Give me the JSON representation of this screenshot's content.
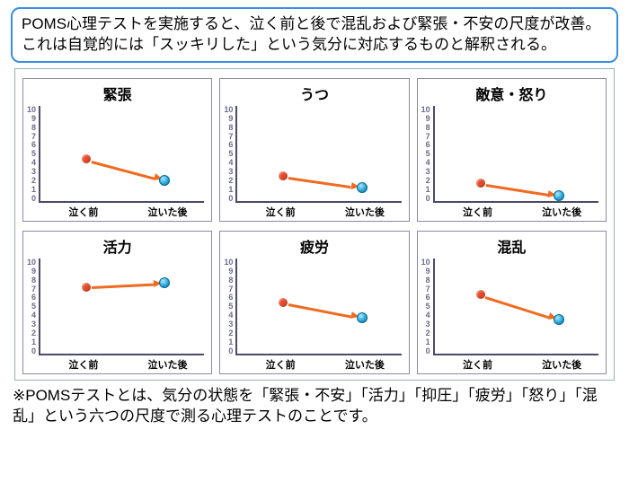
{
  "callout": {
    "text": "POMS心理テストを実施すると、泣く前と後で混乱および緊張・不安の尺度が改善。これは自覚的には「スッキリした」という気分に対応するものと解釈される。",
    "border_color": "#3a8de0",
    "text_color": "#000000"
  },
  "charts_box": {
    "border_color": "#96b5a5"
  },
  "chart_style": {
    "panel_border_color": "#8a8aa0",
    "axis_color": "#4a4a6a",
    "ytick_labels": [
      "10",
      "9",
      "8",
      "7",
      "6",
      "5",
      "4",
      "3",
      "2",
      "1",
      "0"
    ],
    "ylim": [
      0,
      10
    ],
    "xlabels": [
      "泣く前",
      "泣いた後"
    ],
    "x_positions": [
      0.28,
      0.76
    ],
    "point_radius_before": 5,
    "point_radius_after": 6,
    "color_before": "#e84a28",
    "color_after": "#2aa8d8",
    "color_after_border": "#0a6a90",
    "arrow_color": "#f06a20"
  },
  "charts": [
    {
      "title": "緊張",
      "y_before": 4.4,
      "y_after": 2.2
    },
    {
      "title": "うつ",
      "y_before": 2.6,
      "y_after": 1.4
    },
    {
      "title": "敵意・怒り",
      "y_before": 1.9,
      "y_after": 0.6
    },
    {
      "title": "活力",
      "y_before": 7.0,
      "y_after": 7.4
    },
    {
      "title": "疲労",
      "y_before": 5.4,
      "y_after": 3.8
    },
    {
      "title": "混乱",
      "y_before": 6.2,
      "y_after": 3.6
    }
  ],
  "footnote": {
    "text": "※POMSテストとは、気分の状態を「緊張・不安」「活力」「抑圧」「疲労」「怒り」「混乱」という六つの尺度で測る心理テストのことです。"
  }
}
